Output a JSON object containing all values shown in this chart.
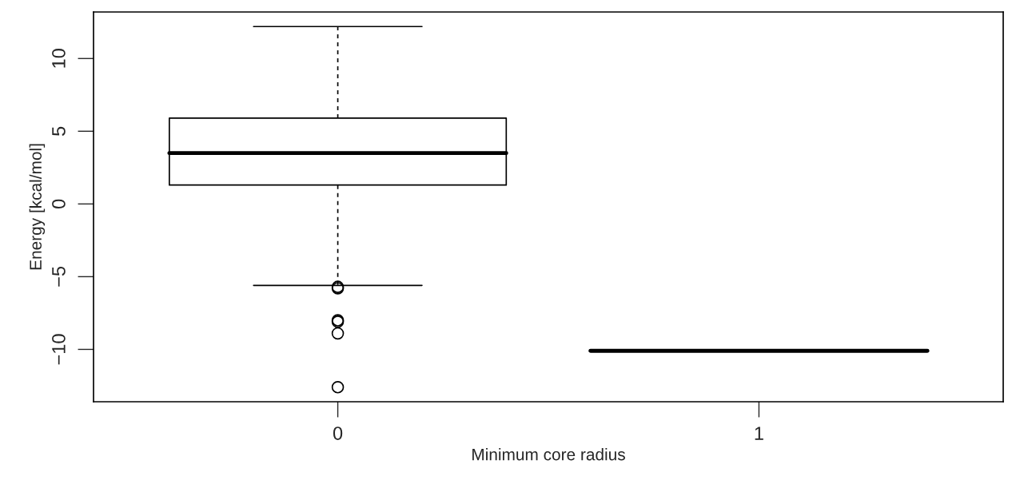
{
  "chart_data": {
    "type": "box",
    "xlabel": "Minimum core radius",
    "ylabel": "Energy [kcal/mol]",
    "categories": [
      "0",
      "1"
    ],
    "boxes": [
      {
        "low": -5.6,
        "q1": 1.3,
        "median": 3.5,
        "q3": 5.9,
        "high": 12.2,
        "outliers": [
          -5.7,
          -5.8,
          -8.0,
          -8.1,
          -8.9,
          -12.6
        ]
      },
      {
        "low": -10.1,
        "q1": -10.1,
        "median": -10.1,
        "q3": -10.1,
        "high": -10.1
      }
    ],
    "ylim": [
      -13.6,
      13.2
    ],
    "yticks": [
      {
        "value": -10,
        "label": "−10"
      },
      {
        "value": -5,
        "label": "−5"
      },
      0,
      5,
      10
    ],
    "grid": false
  }
}
